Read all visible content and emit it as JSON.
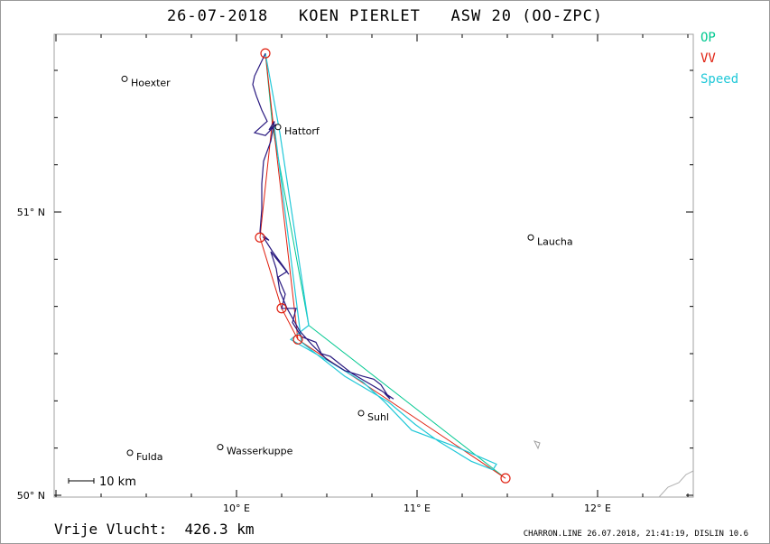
{
  "header": {
    "title": "26-07-2018   KOEN PIERLET   ASW 20 (OO-ZPC)"
  },
  "legend": [
    {
      "label": "OP",
      "color": "#00c890"
    },
    {
      "label": "VV",
      "color": "#e02010"
    },
    {
      "label": "Speed",
      "color": "#20c8d8"
    }
  ],
  "axes": {
    "y_ticks": [
      {
        "label": "51° N"
      },
      {
        "label": "50° N"
      }
    ],
    "x_ticks": [
      {
        "label": "10° E"
      },
      {
        "label": "11° E"
      },
      {
        "label": "12° E"
      }
    ]
  },
  "places": [
    {
      "name": "Hoexter",
      "lon": 9.38,
      "lat": 51.47
    },
    {
      "name": "Hattorf",
      "lon": 10.23,
      "lat": 51.3
    },
    {
      "name": "Laucha",
      "lon": 11.63,
      "lat": 50.91
    },
    {
      "name": "Suhl",
      "lon": 10.69,
      "lat": 50.29
    },
    {
      "name": "Wasserkuppe",
      "lon": 9.91,
      "lat": 50.17
    },
    {
      "name": "Fulda",
      "lon": 9.41,
      "lat": 50.15
    }
  ],
  "scale_bar": {
    "label": "10 km"
  },
  "footer": {
    "distance": "Vrije Vlucht:  426.3 km",
    "info": "CHARRON.LINE 26.07.2018, 21:41:19, DISLIN 10.6"
  },
  "colors": {
    "track": "#2a1a80",
    "op": "#00c890",
    "vv": "#e02010",
    "speed": "#20c8d8",
    "border": "#a0a0a0"
  },
  "flight": {
    "turnpoints": [
      {
        "lon": 10.16,
        "lat": 51.56
      },
      {
        "lon": 10.13,
        "lat": 50.91
      },
      {
        "lon": 10.25,
        "lat": 50.66
      },
      {
        "lon": 10.34,
        "lat": 50.55
      },
      {
        "lon": 11.49,
        "lat": 50.06
      }
    ],
    "op_route": [
      {
        "lon": 10.16,
        "lat": 51.56
      },
      {
        "lon": 10.2,
        "lat": 51.3
      },
      {
        "lon": 10.4,
        "lat": 50.6
      },
      {
        "lon": 11.47,
        "lat": 50.07
      }
    ],
    "vv_route": [
      {
        "lon": 10.16,
        "lat": 51.56
      },
      {
        "lon": 10.2,
        "lat": 51.33
      },
      {
        "lon": 10.13,
        "lat": 50.91
      },
      {
        "lon": 10.25,
        "lat": 50.66
      },
      {
        "lon": 10.34,
        "lat": 50.55
      },
      {
        "lon": 11.49,
        "lat": 50.06
      },
      {
        "lon": 10.34,
        "lat": 50.55
      },
      {
        "lon": 10.2,
        "lat": 51.33
      },
      {
        "lon": 10.16,
        "lat": 51.56
      }
    ],
    "speed_route": [
      {
        "lon": 10.16,
        "lat": 51.56
      },
      {
        "lon": 10.24,
        "lat": 51.28
      },
      {
        "lon": 10.4,
        "lat": 50.6
      },
      {
        "lon": 10.3,
        "lat": 50.55
      },
      {
        "lon": 10.52,
        "lat": 50.47
      },
      {
        "lon": 10.7,
        "lat": 50.4
      },
      {
        "lon": 10.82,
        "lat": 50.33
      },
      {
        "lon": 10.97,
        "lat": 50.23
      },
      {
        "lon": 11.22,
        "lat": 50.17
      },
      {
        "lon": 11.44,
        "lat": 50.11
      },
      {
        "lon": 11.42,
        "lat": 50.09
      },
      {
        "lon": 11.3,
        "lat": 50.12
      },
      {
        "lon": 11.12,
        "lat": 50.19
      },
      {
        "lon": 10.99,
        "lat": 50.25
      },
      {
        "lon": 10.84,
        "lat": 50.33
      },
      {
        "lon": 10.6,
        "lat": 50.42
      },
      {
        "lon": 10.36,
        "lat": 50.54
      },
      {
        "lon": 10.21,
        "lat": 51.3
      }
    ],
    "track": [
      {
        "lon": 10.16,
        "lat": 51.56
      },
      {
        "lon": 10.1,
        "lat": 51.48
      },
      {
        "lon": 10.09,
        "lat": 51.45
      },
      {
        "lon": 10.11,
        "lat": 51.41
      },
      {
        "lon": 10.14,
        "lat": 51.36
      },
      {
        "lon": 10.17,
        "lat": 51.32
      },
      {
        "lon": 10.1,
        "lat": 51.28
      },
      {
        "lon": 10.16,
        "lat": 51.27
      },
      {
        "lon": 10.22,
        "lat": 51.31
      },
      {
        "lon": 10.18,
        "lat": 51.29
      },
      {
        "lon": 10.21,
        "lat": 51.32
      },
      {
        "lon": 10.19,
        "lat": 51.25
      },
      {
        "lon": 10.15,
        "lat": 51.18
      },
      {
        "lon": 10.14,
        "lat": 51.1
      },
      {
        "lon": 10.14,
        "lat": 51.01
      },
      {
        "lon": 10.13,
        "lat": 50.93
      },
      {
        "lon": 10.18,
        "lat": 50.9
      },
      {
        "lon": 10.15,
        "lat": 50.91
      },
      {
        "lon": 10.2,
        "lat": 50.86
      },
      {
        "lon": 10.28,
        "lat": 50.79
      },
      {
        "lon": 10.23,
        "lat": 50.77
      },
      {
        "lon": 10.27,
        "lat": 50.71
      },
      {
        "lon": 10.25,
        "lat": 50.66
      },
      {
        "lon": 10.33,
        "lat": 50.66
      },
      {
        "lon": 10.31,
        "lat": 50.61
      },
      {
        "lon": 10.36,
        "lat": 50.56
      },
      {
        "lon": 10.44,
        "lat": 50.54
      },
      {
        "lon": 10.47,
        "lat": 50.5
      },
      {
        "lon": 10.52,
        "lat": 50.49
      },
      {
        "lon": 10.58,
        "lat": 50.46
      },
      {
        "lon": 10.64,
        "lat": 50.43
      },
      {
        "lon": 10.72,
        "lat": 50.4
      },
      {
        "lon": 10.8,
        "lat": 50.37
      },
      {
        "lon": 10.87,
        "lat": 50.34
      },
      {
        "lon": 10.82,
        "lat": 50.36
      },
      {
        "lon": 10.85,
        "lat": 50.34
      },
      {
        "lon": 10.8,
        "lat": 50.39
      },
      {
        "lon": 10.76,
        "lat": 50.41
      },
      {
        "lon": 10.7,
        "lat": 50.42
      },
      {
        "lon": 10.6,
        "lat": 50.44
      },
      {
        "lon": 10.5,
        "lat": 50.48
      },
      {
        "lon": 10.42,
        "lat": 50.53
      },
      {
        "lon": 10.35,
        "lat": 50.58
      },
      {
        "lon": 10.28,
        "lat": 50.66
      },
      {
        "lon": 10.24,
        "lat": 50.72
      },
      {
        "lon": 10.22,
        "lat": 50.8
      },
      {
        "lon": 10.19,
        "lat": 50.86
      },
      {
        "lon": 10.29,
        "lat": 50.78
      }
    ]
  }
}
